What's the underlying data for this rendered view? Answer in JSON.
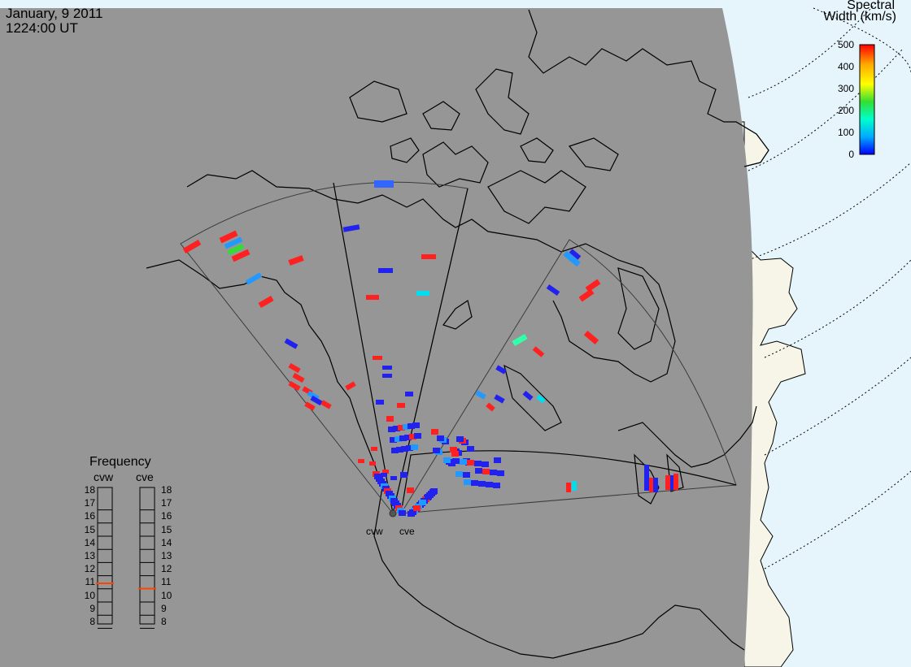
{
  "header": {
    "date": "January, 9 2011",
    "time": "1224:00 UT"
  },
  "colorbar": {
    "title_line1": "Spectral",
    "title_line2": "Width (km/s)",
    "ticks": [
      "500",
      "400",
      "300",
      "200",
      "100",
      "0"
    ],
    "min": 0,
    "max": 500,
    "colors": [
      "#0000ff",
      "#00aaff",
      "#00ffcc",
      "#33dd33",
      "#ffff00",
      "#ffaa00",
      "#ff0000"
    ]
  },
  "radars": {
    "west_label": "cvw",
    "east_label": "cve"
  },
  "frequency_panel": {
    "title": "Frequency",
    "radar_left": "cvw",
    "radar_right": "cve",
    "ticks": [
      "18",
      "17",
      "16",
      "15",
      "14",
      "13",
      "12",
      "11",
      "10",
      "9",
      "8"
    ],
    "range": [
      8,
      18
    ],
    "cvw_mhz": 10.9,
    "cve_mhz": 10.5,
    "marker_color": "#ff4400"
  },
  "map_colors": {
    "ocean_grey": "#969696",
    "land_outline": "#000000",
    "outer_ocean": "#e6f4fc",
    "outer_land": "#f7f5e8"
  }
}
